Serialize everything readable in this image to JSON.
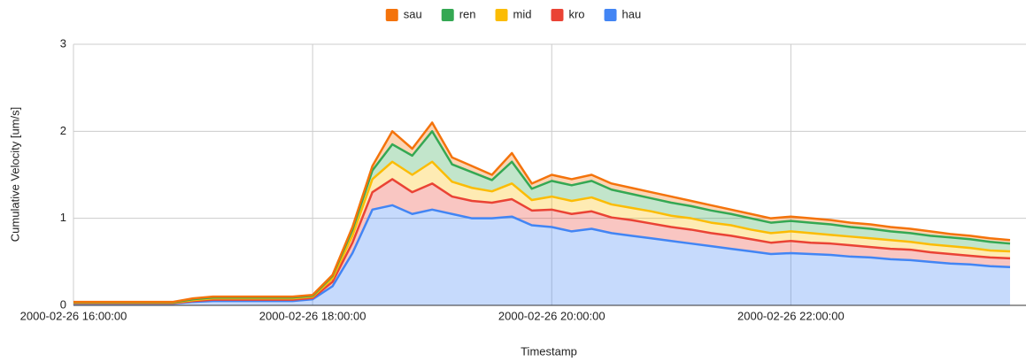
{
  "chart_data": {
    "type": "stacked-area",
    "y_label": "Cumulative Velocity [um/s]",
    "x_label": "Timestamp",
    "x": [
      "2000-02-26 16:00:00",
      "2000-02-26 16:10:00",
      "2000-02-26 16:20:00",
      "2000-02-26 16:30:00",
      "2000-02-26 16:40:00",
      "2000-02-26 16:50:00",
      "2000-02-26 17:00:00",
      "2000-02-26 17:10:00",
      "2000-02-26 17:20:00",
      "2000-02-26 17:30:00",
      "2000-02-26 17:40:00",
      "2000-02-26 17:50:00",
      "2000-02-26 18:00:00",
      "2000-02-26 18:10:00",
      "2000-02-26 18:20:00",
      "2000-02-26 18:30:00",
      "2000-02-26 18:40:00",
      "2000-02-26 18:50:00",
      "2000-02-26 19:00:00",
      "2000-02-26 19:10:00",
      "2000-02-26 19:20:00",
      "2000-02-26 19:30:00",
      "2000-02-26 19:40:00",
      "2000-02-26 19:50:00",
      "2000-02-26 20:00:00",
      "2000-02-26 20:10:00",
      "2000-02-26 20:20:00",
      "2000-02-26 20:30:00",
      "2000-02-26 20:40:00",
      "2000-02-26 20:50:00",
      "2000-02-26 21:00:00",
      "2000-02-26 21:10:00",
      "2000-02-26 21:20:00",
      "2000-02-26 21:30:00",
      "2000-02-26 21:40:00",
      "2000-02-26 21:50:00",
      "2000-02-26 22:00:00",
      "2000-02-26 22:10:00",
      "2000-02-26 22:20:00",
      "2000-02-26 22:30:00",
      "2000-02-26 22:40:00",
      "2000-02-26 22:50:00",
      "2000-02-26 23:00:00",
      "2000-02-26 23:10:00",
      "2000-02-26 23:20:00",
      "2000-02-26 23:30:00",
      "2000-02-26 23:40:00",
      "2000-02-26 23:50:00"
    ],
    "xlim": [
      "2000-02-26 16:00:00",
      "2000-02-26 23:58:00"
    ],
    "xticks": [
      "2000-02-26 16:00:00",
      "2000-02-26 18:00:00",
      "2000-02-26 20:00:00",
      "2000-02-26 22:00:00"
    ],
    "ylim": [
      0,
      3
    ],
    "yticks": [
      0,
      1,
      2,
      3
    ],
    "grid": true,
    "legend": "top",
    "series": [
      {
        "name": "sau",
        "color": "#f4730b",
        "values": [
          0.005,
          0.005,
          0.005,
          0.005,
          0.005,
          0.005,
          0.01,
          0.01,
          0.01,
          0.01,
          0.01,
          0.01,
          0.01,
          0.01,
          0.03,
          0.05,
          0.15,
          0.08,
          0.1,
          0.08,
          0.07,
          0.06,
          0.1,
          0.06,
          0.07,
          0.07,
          0.07,
          0.07,
          0.07,
          0.07,
          0.07,
          0.06,
          0.06,
          0.05,
          0.05,
          0.05,
          0.05,
          0.05,
          0.05,
          0.05,
          0.05,
          0.05,
          0.05,
          0.05,
          0.04,
          0.04,
          0.04,
          0.04
        ]
      },
      {
        "name": "ren",
        "color": "#34a853",
        "values": [
          0.005,
          0.005,
          0.005,
          0.005,
          0.005,
          0.005,
          0.01,
          0.01,
          0.01,
          0.01,
          0.01,
          0.01,
          0.01,
          0.03,
          0.07,
          0.1,
          0.2,
          0.22,
          0.35,
          0.2,
          0.18,
          0.13,
          0.25,
          0.13,
          0.18,
          0.18,
          0.19,
          0.17,
          0.16,
          0.15,
          0.15,
          0.14,
          0.14,
          0.13,
          0.13,
          0.12,
          0.12,
          0.12,
          0.12,
          0.11,
          0.11,
          0.1,
          0.1,
          0.1,
          0.1,
          0.1,
          0.1,
          0.09
        ]
      },
      {
        "name": "mid",
        "color": "#fbbc04",
        "values": [
          0.005,
          0.005,
          0.005,
          0.005,
          0.005,
          0.005,
          0.01,
          0.015,
          0.015,
          0.015,
          0.015,
          0.015,
          0.015,
          0.04,
          0.08,
          0.15,
          0.2,
          0.2,
          0.25,
          0.17,
          0.15,
          0.13,
          0.18,
          0.12,
          0.15,
          0.15,
          0.16,
          0.15,
          0.14,
          0.14,
          0.13,
          0.13,
          0.12,
          0.12,
          0.11,
          0.11,
          0.11,
          0.11,
          0.1,
          0.1,
          0.1,
          0.1,
          0.09,
          0.09,
          0.09,
          0.09,
          0.08,
          0.08
        ]
      },
      {
        "name": "kro",
        "color": "#ea4335",
        "values": [
          0.005,
          0.005,
          0.005,
          0.005,
          0.005,
          0.005,
          0.01,
          0.015,
          0.015,
          0.015,
          0.015,
          0.015,
          0.015,
          0.05,
          0.12,
          0.2,
          0.3,
          0.25,
          0.3,
          0.2,
          0.2,
          0.18,
          0.2,
          0.17,
          0.2,
          0.2,
          0.2,
          0.18,
          0.18,
          0.17,
          0.16,
          0.16,
          0.15,
          0.15,
          0.14,
          0.13,
          0.14,
          0.13,
          0.13,
          0.13,
          0.12,
          0.12,
          0.12,
          0.11,
          0.11,
          0.1,
          0.1,
          0.1
        ]
      },
      {
        "name": "hau",
        "color": "#4285f4",
        "values": [
          0.02,
          0.02,
          0.02,
          0.02,
          0.02,
          0.02,
          0.04,
          0.05,
          0.05,
          0.05,
          0.05,
          0.05,
          0.07,
          0.22,
          0.6,
          1.1,
          1.15,
          1.05,
          1.1,
          1.05,
          1.0,
          1.0,
          1.02,
          0.92,
          0.9,
          0.85,
          0.88,
          0.83,
          0.8,
          0.77,
          0.74,
          0.71,
          0.68,
          0.65,
          0.62,
          0.59,
          0.6,
          0.59,
          0.58,
          0.56,
          0.55,
          0.53,
          0.52,
          0.5,
          0.48,
          0.47,
          0.45,
          0.44
        ]
      }
    ]
  }
}
